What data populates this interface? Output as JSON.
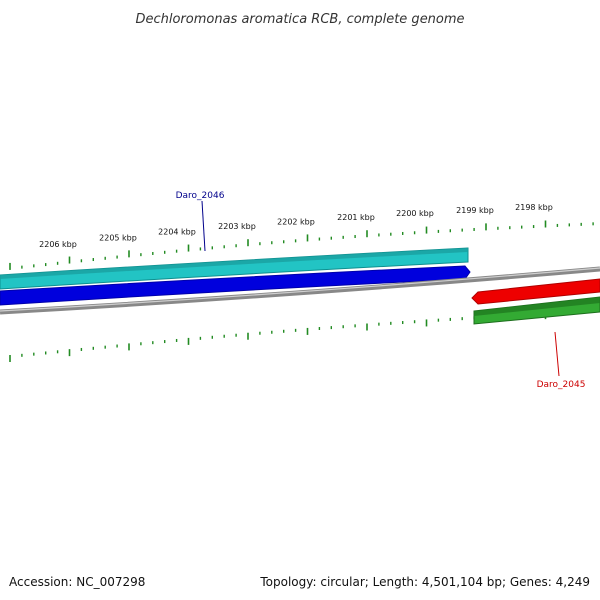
{
  "title": "Dechloromonas aromatica RCB, complete genome",
  "footer": {
    "accession": "Accession: NC_007298",
    "summary": "Topology: circular; Length: 4,501,104 bp; Genes: 4,249"
  },
  "colors": {
    "tick": "#228b22",
    "backbone": "#888888",
    "gene_forward_outer": "#22c4c4",
    "gene_forward_inner": "#0000dd",
    "gene_reverse_inner": "#ee0000",
    "gene_reverse_outer": "#33aa33",
    "label_forward": "#00008b",
    "label_reverse": "#cc0000"
  },
  "scale": {
    "unit": "kbp",
    "tick_labels": [
      "2206 kbp",
      "2205 kbp",
      "2204 kbp",
      "2203 kbp",
      "2202 kbp",
      "2201 kbp",
      "2200 kbp",
      "2199 kbp",
      "2198 kbp"
    ]
  },
  "genes": [
    {
      "label": "Daro_2046",
      "strand": "forward"
    },
    {
      "label": "Daro_2045",
      "strand": "reverse"
    }
  ]
}
